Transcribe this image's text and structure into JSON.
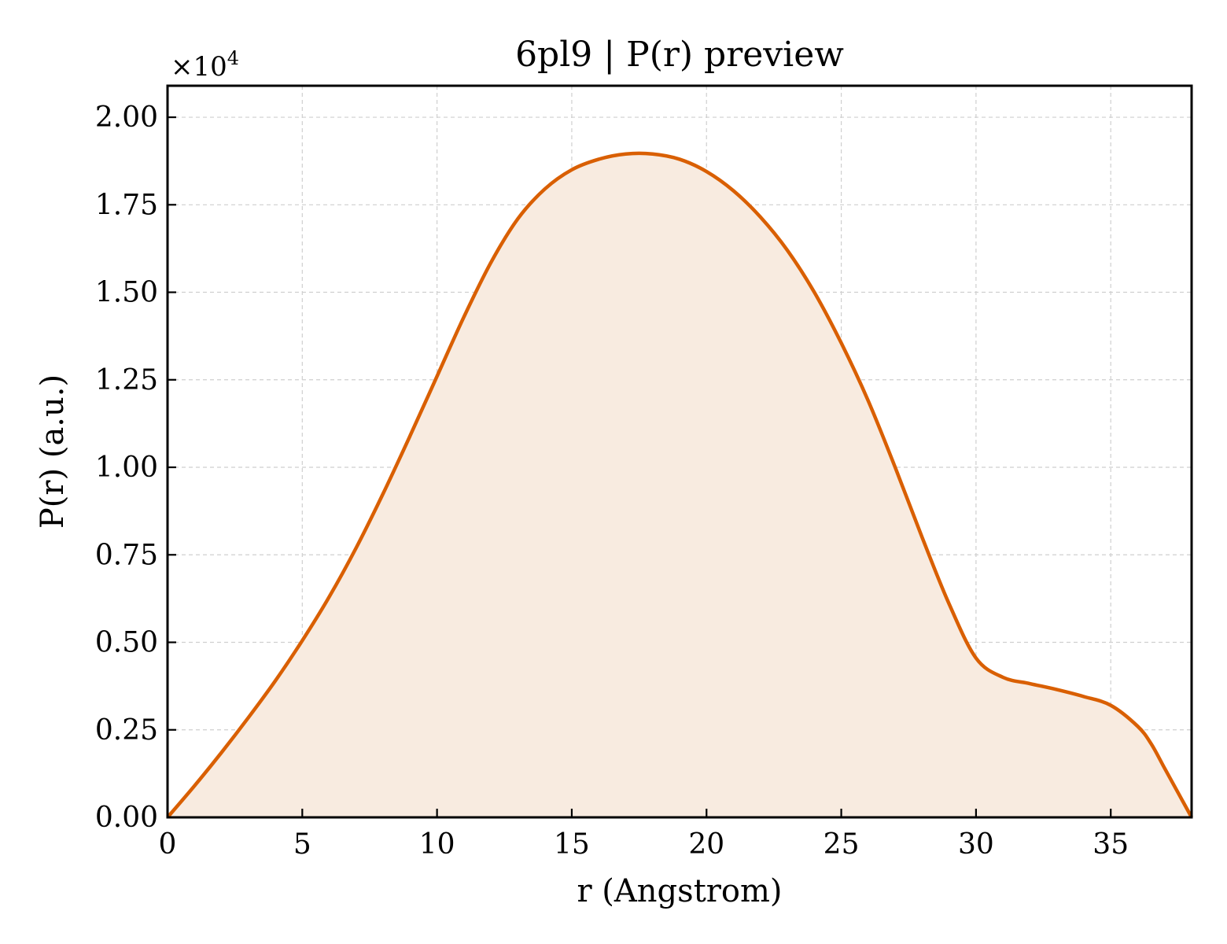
{
  "chart_data": {
    "type": "area",
    "title": "6pl9 | P(r) preview",
    "xlabel": "r (Angstrom)",
    "ylabel": "P(r) (a.u.)",
    "y_offset_label_base": "×10",
    "y_offset_label_exp": "4",
    "xlim": [
      0,
      38
    ],
    "ylim": [
      0,
      2.09
    ],
    "xticks": [
      0,
      5,
      10,
      15,
      20,
      25,
      30,
      35
    ],
    "xtick_labels": [
      "0",
      "5",
      "10",
      "15",
      "20",
      "25",
      "30",
      "35"
    ],
    "yticks": [
      0,
      0.25,
      0.5,
      0.75,
      1.0,
      1.25,
      1.5,
      1.75,
      2.0
    ],
    "ytick_labels": [
      "0.00",
      "0.25",
      "0.50",
      "0.75",
      "1.00",
      "1.25",
      "1.50",
      "1.75",
      "2.00"
    ],
    "grid": true,
    "line_color": "#d95f02",
    "fill_color": "#f8ebe0",
    "series": [
      {
        "x": [
          0,
          1,
          2,
          3,
          4,
          5,
          6,
          7,
          8,
          9,
          10,
          11,
          12,
          13,
          14,
          15,
          16,
          17,
          18,
          19,
          20,
          21,
          22,
          23,
          24,
          25,
          26,
          27,
          28,
          29,
          30,
          31,
          32,
          33,
          34,
          35,
          36,
          36.5,
          37,
          37.5,
          38
        ],
        "y": [
          0,
          0.09,
          0.185,
          0.285,
          0.39,
          0.505,
          0.63,
          0.77,
          0.925,
          1.09,
          1.26,
          1.43,
          1.585,
          1.71,
          1.795,
          1.85,
          1.88,
          1.895,
          1.895,
          1.88,
          1.845,
          1.79,
          1.715,
          1.62,
          1.5,
          1.355,
          1.19,
          1.0,
          0.8,
          0.61,
          0.455,
          0.4,
          0.382,
          0.365,
          0.345,
          0.32,
          0.26,
          0.21,
          0.14,
          0.07,
          0
        ]
      }
    ]
  }
}
